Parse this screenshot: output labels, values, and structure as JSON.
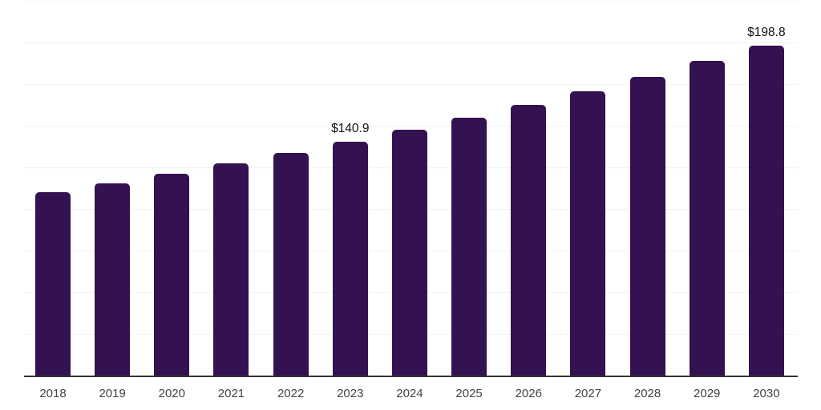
{
  "page": {
    "background_color": "#ffffff"
  },
  "chart_data": {
    "type": "bar",
    "title": "",
    "xlabel": "",
    "ylabel": "",
    "categories": [
      "2018",
      "2019",
      "2020",
      "2021",
      "2022",
      "2023",
      "2024",
      "2025",
      "2026",
      "2027",
      "2028",
      "2029",
      "2030"
    ],
    "values": [
      110.4,
      115.9,
      121.7,
      127.8,
      134.2,
      140.9,
      148.0,
      155.4,
      163.2,
      171.4,
      180.0,
      189.3,
      198.8
    ],
    "labels": [
      "",
      "",
      "",
      "",
      "",
      "$140.9",
      "",
      "",
      "",
      "",
      "",
      "",
      "$198.8"
    ],
    "ylim": [
      0,
      225
    ],
    "gridline_step": 25,
    "grid": true,
    "legend": false,
    "y_axis_labels_shown": false,
    "bar_color": "#341150",
    "gridline_color": "#f2f2f2",
    "axis_color": "#333333",
    "year_label_color": "#444444",
    "value_label_color": "#111111"
  }
}
